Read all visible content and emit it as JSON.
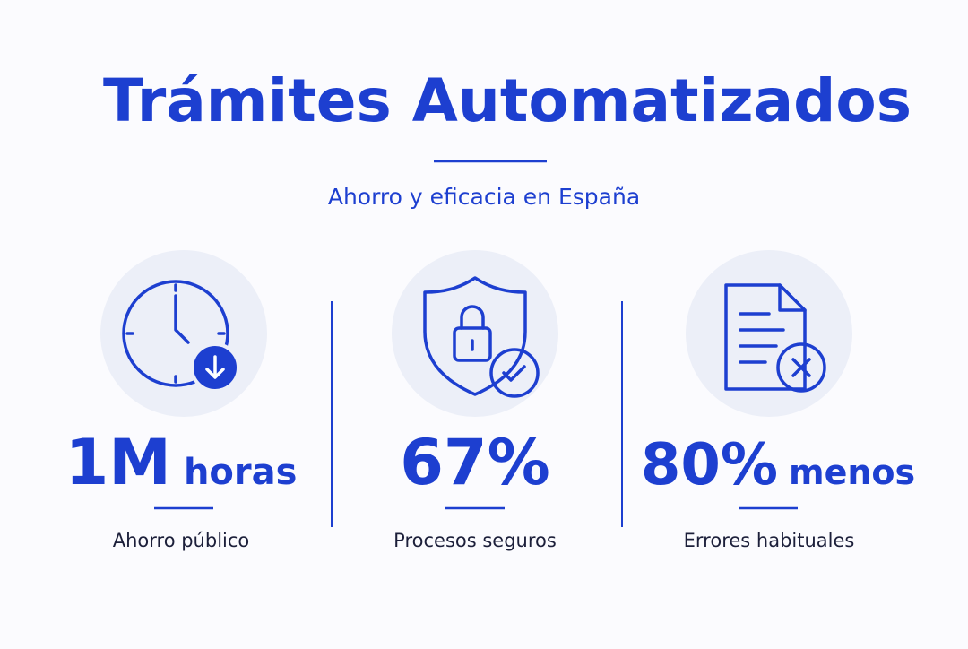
{
  "header": {
    "title": "Trámites Automatizados",
    "subtitle": "Ahorro y eficacia en España"
  },
  "stats": [
    {
      "value": "1M",
      "unit": "horas",
      "label": "Ahorro público"
    },
    {
      "value": "67%",
      "label": "Procesos seguros"
    },
    {
      "value": "80%",
      "unit": "menos",
      "label": "Errores habituales"
    }
  ]
}
